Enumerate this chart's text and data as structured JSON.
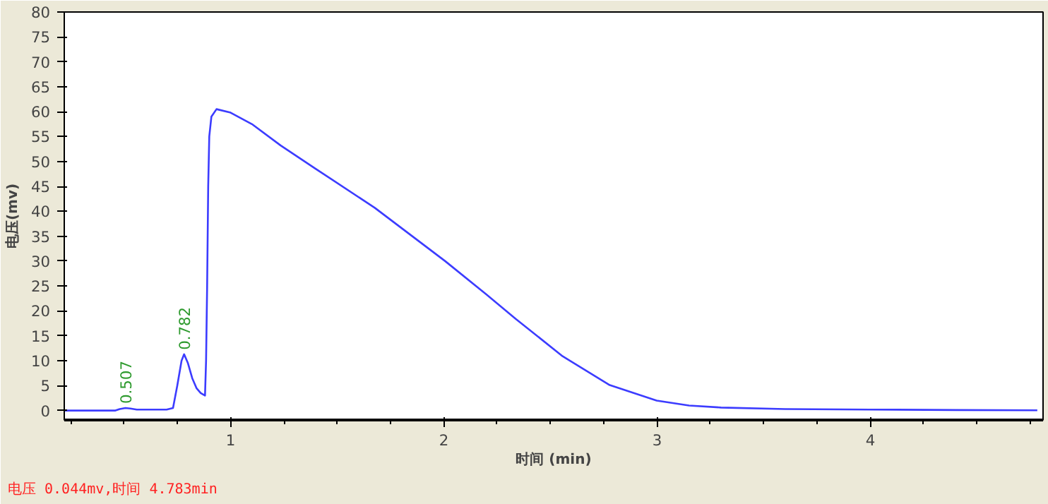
{
  "chart_data": {
    "type": "line",
    "xlabel": "时间 (min)",
    "ylabel": "电压(mv)",
    "x": [
      0.22,
      0.46,
      0.48,
      0.507,
      0.53,
      0.56,
      0.6,
      0.7,
      0.73,
      0.75,
      0.77,
      0.782,
      0.8,
      0.82,
      0.84,
      0.86,
      0.88,
      0.885,
      0.89,
      0.895,
      0.9,
      0.91,
      0.934,
      1.0,
      1.1,
      1.235,
      1.4,
      1.676,
      2.006,
      2.2,
      2.337,
      2.557,
      2.778,
      2.998,
      3.15,
      3.3,
      3.6,
      4.0,
      4.4,
      4.783
    ],
    "series": [
      {
        "color": "#3c3cff",
        "values": [
          0,
          0,
          0.3,
          0.5,
          0.4,
          0.2,
          0.2,
          0.2,
          0.5,
          5,
          10,
          11.3,
          9.5,
          6.5,
          4.5,
          3.5,
          3,
          10,
          25,
          45,
          55,
          59,
          60.5,
          59.8,
          57.5,
          53.2,
          48.5,
          40.7,
          30,
          23.3,
          18.4,
          10.9,
          5.1,
          2,
          1.0,
          0.6,
          0.3,
          0.2,
          0.1,
          0.044
        ]
      }
    ],
    "xlim": [
      0.22,
      4.81
    ],
    "ylim": [
      -1.9,
      80
    ],
    "xticks": [
      {
        "value": 0.25,
        "label": null
      },
      {
        "value": 0.5,
        "label": null
      },
      {
        "value": 0.75,
        "label": null
      },
      1,
      {
        "value": 1.25,
        "label": null
      },
      {
        "value": 1.5,
        "label": null
      },
      {
        "value": 1.75,
        "label": null
      },
      2,
      {
        "value": 2.25,
        "label": null
      },
      {
        "value": 2.5,
        "label": null
      },
      {
        "value": 2.75,
        "label": null
      },
      3,
      {
        "value": 3.25,
        "label": null
      },
      {
        "value": 3.5,
        "label": null
      },
      {
        "value": 3.75,
        "label": null
      },
      4,
      {
        "value": 4.25,
        "label": null
      },
      {
        "value": 4.5,
        "label": null
      },
      {
        "value": 4.75,
        "label": null
      }
    ],
    "yticks": [
      0,
      5,
      10,
      15,
      20,
      25,
      30,
      35,
      40,
      45,
      50,
      55,
      60,
      65,
      70,
      75,
      80
    ],
    "grid": false,
    "marker": "none",
    "line_style": "solid",
    "annotations": [
      {
        "text": "0.507",
        "x": 0.507,
        "y": 0.5
      },
      {
        "text": "0.782",
        "x": 0.782,
        "y": 11.3
      },
      "电压 0.044mv,时间 4.783min"
    ]
  }
}
